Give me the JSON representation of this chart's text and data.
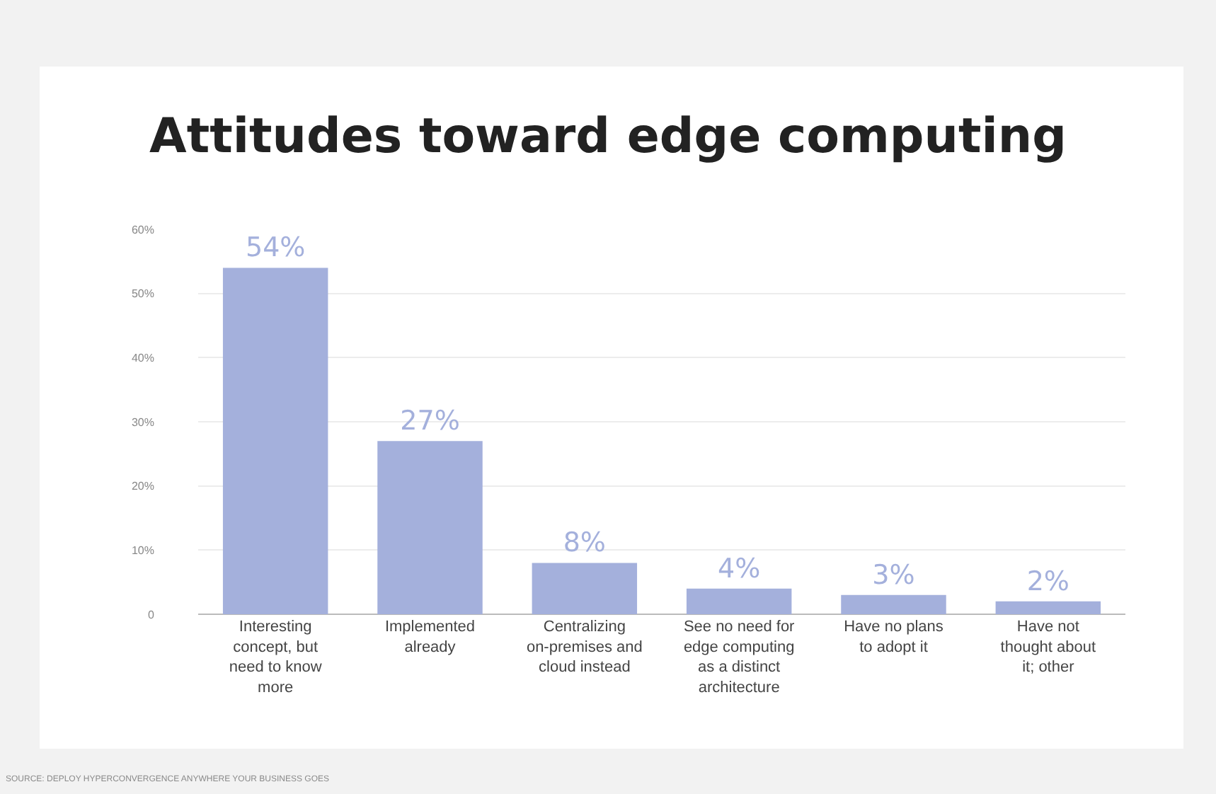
{
  "chart_data": {
    "type": "bar",
    "title": "Attitudes toward edge computing",
    "categories": [
      "Interesting concept, but need to know more",
      "Implemented already",
      "Centralizing on-premises and cloud instead",
      "See no need for edge computing as a distinct architecture",
      "Have no plans to adopt it",
      "Have not thought about it; other"
    ],
    "values": [
      54,
      27,
      8,
      4,
      3,
      2
    ],
    "value_labels": [
      "54%",
      "27%",
      "8%",
      "4%",
      "3%",
      "2%"
    ],
    "color": "#a4b0dc",
    "ylim": [
      0,
      60
    ],
    "yticks": [
      {
        "value": 0,
        "label": "0"
      },
      {
        "value": 10,
        "label": "10%"
      },
      {
        "value": 20,
        "label": "20%"
      },
      {
        "value": 30,
        "label": "30%"
      },
      {
        "value": 40,
        "label": "40%"
      },
      {
        "value": 50,
        "label": "50%"
      },
      {
        "value": 60,
        "label": "60%"
      }
    ],
    "grid": "y",
    "annotations": [
      "SOURCE: DEPLOY HYPERCONVERGENCE ANYWHERE YOUR BUSINESS GOES"
    ]
  }
}
